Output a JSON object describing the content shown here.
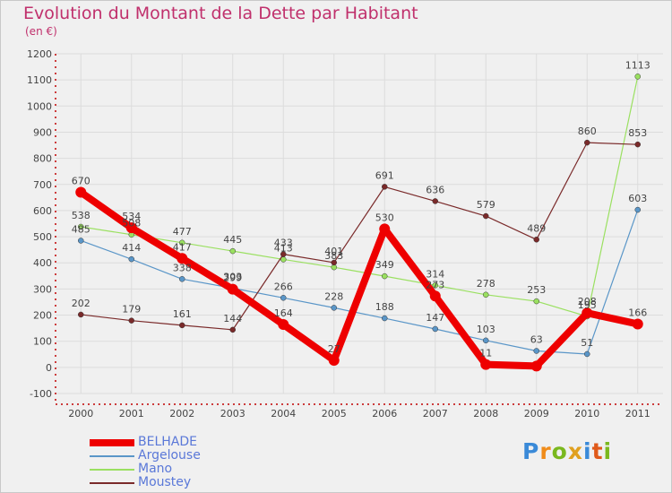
{
  "title": "Evolution du Montant de la Dette par Habitant",
  "subtitle": "(en €)",
  "logo": {
    "text": "Proxiti",
    "letters": [
      "P",
      "r",
      "o",
      "x",
      "i",
      "t",
      "i"
    ],
    "colors": [
      "#3a8ad8",
      "#f08c1a",
      "#7ab81e",
      "#e0a020",
      "#3a8ad8",
      "#e05a1a",
      "#7ab81e"
    ]
  },
  "chart_data": {
    "type": "line",
    "x": [
      "2000",
      "2001",
      "2002",
      "2003",
      "2004",
      "2005",
      "2006",
      "2007",
      "2008",
      "2009",
      "2010",
      "2011"
    ],
    "yticks": [
      "-100",
      "0",
      "100",
      "200",
      "300",
      "400",
      "500",
      "600",
      "700",
      "800",
      "900",
      "1000",
      "1100",
      "1200"
    ],
    "ylim": [
      -100,
      1200
    ],
    "grid": true,
    "legend_position": "bottom-left",
    "series": [
      {
        "name": "BELHADE",
        "color": "#ee0000",
        "width": 8,
        "values": [
          670,
          534,
          417,
          299,
          164,
          27,
          530,
          273,
          11,
          5,
          208,
          166
        ],
        "labels": [
          "670",
          "534",
          "417",
          "299",
          "164",
          "27",
          "530",
          "273",
          "11",
          "",
          "208",
          "166"
        ]
      },
      {
        "name": "Argelouse",
        "color": "#5a96c8",
        "width": 1.2,
        "values": [
          485,
          414,
          338,
          303,
          266,
          228,
          188,
          147,
          103,
          63,
          51,
          603
        ],
        "labels": [
          "485",
          "414",
          "338",
          "303",
          "266",
          "228",
          "188",
          "147",
          "103",
          "63",
          "51",
          "603"
        ]
      },
      {
        "name": "Mano",
        "color": "#9ae060",
        "width": 1.2,
        "values": [
          538,
          508,
          477,
          445,
          413,
          383,
          349,
          314,
          278,
          253,
          195,
          1113
        ],
        "labels": [
          "538",
          "508",
          "477",
          "445",
          "413",
          "383",
          "349",
          "314",
          "278",
          "253",
          "195",
          "1113"
        ]
      },
      {
        "name": "Moustey",
        "color": "#7a2a2a",
        "width": 1.2,
        "values": [
          202,
          179,
          161,
          144,
          433,
          401,
          691,
          636,
          579,
          489,
          860,
          853
        ],
        "labels": [
          "202",
          "179",
          "161",
          "144",
          "433",
          "401",
          "691",
          "636",
          "579",
          "489",
          "860",
          "853"
        ]
      }
    ]
  }
}
